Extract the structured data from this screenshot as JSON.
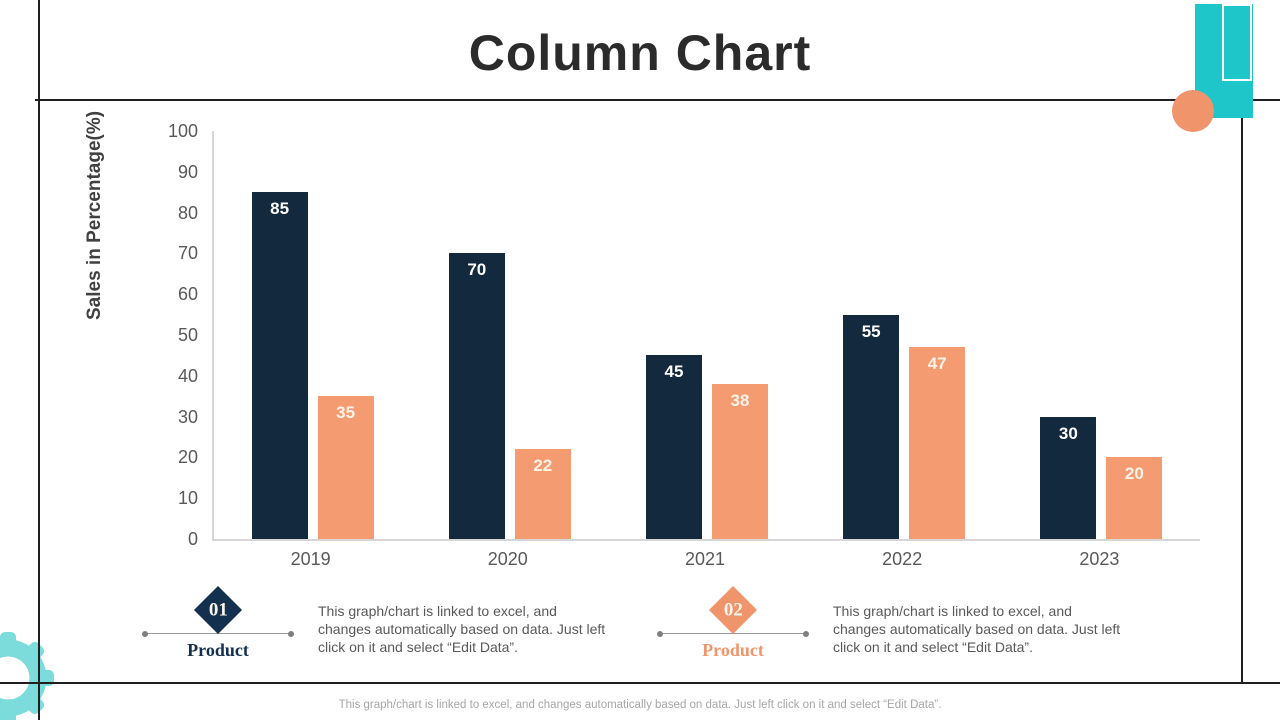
{
  "title": "Column Chart",
  "chart_data": {
    "type": "bar",
    "categories": [
      "2019",
      "2020",
      "2021",
      "2022",
      "2023"
    ],
    "series": [
      {
        "name": "Product 01",
        "color": "#13293E",
        "label_color": "#ffffff",
        "values": [
          85,
          70,
          45,
          55,
          30
        ]
      },
      {
        "name": "Product 02",
        "color": "#F59B72",
        "label_color": "#fdf3e7",
        "values": [
          35,
          22,
          38,
          47,
          20
        ]
      }
    ],
    "ylabel": "Sales in Percentage(%)",
    "xlabel": "",
    "ylim": [
      0,
      100
    ],
    "yticks": [
      0,
      10,
      20,
      30,
      40,
      50,
      60,
      70,
      80,
      90,
      100
    ],
    "grid": false,
    "legend_position": "below",
    "bar_labels": "inside-top"
  },
  "legend": {
    "items": [
      {
        "number": "01",
        "label": "Product",
        "color": "#13304F",
        "description": "This graph/chart is linked to excel, and changes automatically based on data. Just left click on it and select “Edit Data”."
      },
      {
        "number": "02",
        "label": "Product",
        "color": "#F0946C",
        "description": "This graph/chart is linked to excel, and changes automatically based on data. Just left click on it and select “Edit Data”."
      }
    ]
  },
  "footer": {
    "note": "This graph/chart is linked to excel,  and changes automatically based on data. Just left click on it and select “Edit Data”."
  },
  "decorations": {
    "accent_teal": "#1EC6C9",
    "accent_orange": "#F0946C",
    "gear_teal": "#7CDBDB"
  }
}
